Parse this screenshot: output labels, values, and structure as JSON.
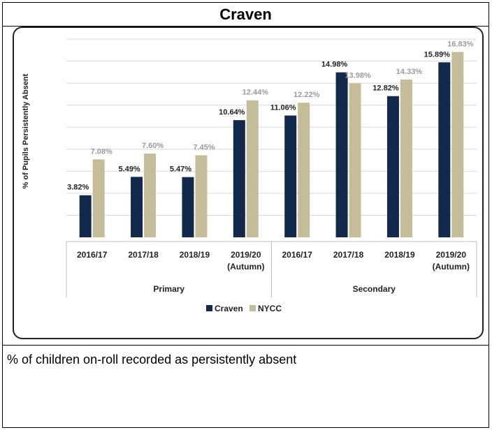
{
  "page": {
    "title": "Craven",
    "caption": "% of children on-roll recorded as persistently absent"
  },
  "colors": {
    "Craven": "#13294b",
    "NYCC": "#c5bd99"
  },
  "chart_data": {
    "type": "bar",
    "ylabel": "% of Pupils Persistently Absent",
    "ylim": [
      0,
      18
    ],
    "grid": true,
    "legend_position": "bottom",
    "groups": [
      {
        "name": "Primary",
        "categories": [
          "2016/17",
          "2017/18",
          "2018/19",
          "2019/20\n(Autumn)"
        ]
      },
      {
        "name": "Secondary",
        "categories": [
          "2016/17",
          "2017/18",
          "2018/19",
          "2019/20\n(Autumn)"
        ]
      }
    ],
    "series": [
      {
        "name": "Craven",
        "values": [
          3.82,
          5.49,
          5.47,
          10.64,
          11.06,
          14.98,
          12.82,
          15.89
        ],
        "labels": [
          "3.82%",
          "5.49%",
          "5.47%",
          "10.64%",
          "11.06%",
          "14.98%",
          "12.82%",
          "15.89%"
        ]
      },
      {
        "name": "NYCC",
        "values": [
          7.08,
          7.6,
          7.45,
          12.44,
          12.22,
          13.98,
          14.33,
          16.83
        ],
        "labels": [
          "7.08%",
          "7.60%",
          "7.45%",
          "12.44%",
          "12.22%",
          "13.98%",
          "14.33%",
          "16.83%"
        ]
      }
    ]
  }
}
